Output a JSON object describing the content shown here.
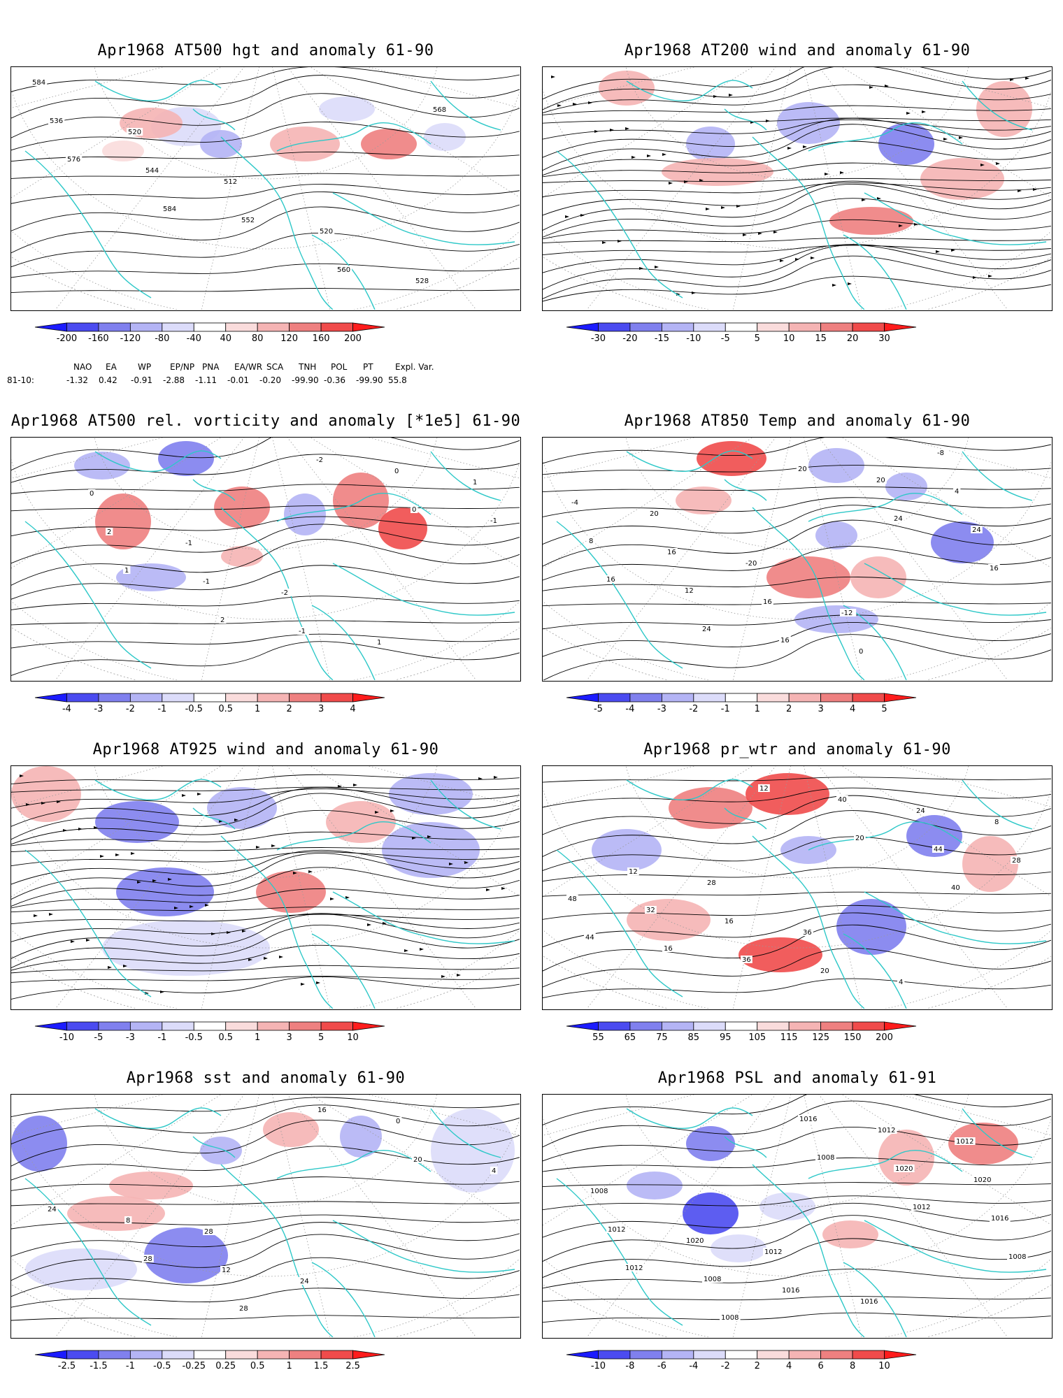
{
  "panels": [
    {
      "title": "Apr1968 AT500 hgt and anomaly 61-90",
      "labels": [
        "584",
        "520",
        "512",
        "520",
        "528",
        "536",
        "544",
        "552",
        "560",
        "568",
        "576",
        "584"
      ],
      "ticks": [
        "-200",
        "-160",
        "-120",
        "-80",
        "-40",
        "40",
        "80",
        "120",
        "160",
        "200"
      ]
    },
    {
      "title": "Apr1968 AT200 wind and anomaly 61-90",
      "labels": [],
      "ticks": [
        "-30",
        "-20",
        "-15",
        "-10",
        "-5",
        "5",
        "10",
        "15",
        "20",
        "30"
      ]
    },
    {
      "title": "Apr1968 AT500 rel. vorticity and anomaly [*1e5] 61-90",
      "labels": [
        "0",
        "-1",
        "-2",
        "1",
        "1",
        "2",
        "-1",
        "-1",
        "0",
        "-1",
        "1",
        "2",
        "-2",
        "0"
      ],
      "ticks": [
        "-4",
        "-3",
        "-2",
        "-1",
        "-0.5",
        "0.5",
        "1",
        "2",
        "3",
        "4"
      ]
    },
    {
      "title": "Apr1968 AT850 Temp and anomaly 61-90",
      "labels": [
        "20",
        "-20",
        "-12",
        "-8",
        "-4",
        "16",
        "16",
        "0",
        "4",
        "8",
        "12",
        "16",
        "20",
        "24",
        "16",
        "24",
        "20",
        "24",
        "16"
      ],
      "ticks": [
        "-5",
        "-4",
        "-3",
        "-2",
        "-1",
        "1",
        "2",
        "3",
        "4",
        "5"
      ]
    },
    {
      "title": "Apr1968 AT925 wind and anomaly 61-90",
      "labels": [],
      "ticks": [
        "-10",
        "-5",
        "-3",
        "-1",
        "-0.5",
        "0.5",
        "1",
        "3",
        "5",
        "10"
      ]
    },
    {
      "title": "Apr1968 pr_wtr and anomaly 61-90",
      "labels": [
        "28",
        "36",
        "4",
        "8",
        "12",
        "16",
        "20",
        "24",
        "28",
        "32",
        "36",
        "40",
        "44",
        "48",
        "16",
        "12",
        "20",
        "40",
        "44"
      ],
      "ticks": [
        "55",
        "65",
        "75",
        "85",
        "95",
        "105",
        "115",
        "125",
        "150",
        "200"
      ]
    },
    {
      "title": "Apr1968 sst and anomaly 61-90",
      "labels": [
        "28",
        "24",
        "0",
        "4",
        "8",
        "12",
        "16",
        "20",
        "24",
        "28",
        "28"
      ],
      "ticks": [
        "-2.5",
        "-1.5",
        "-1",
        "-0.5",
        "-0.25",
        "0.25",
        "0.5",
        "1",
        "1.5",
        "2.5"
      ]
    },
    {
      "title": "Apr1968 PSL and anomaly 61-91",
      "labels": [
        "1012",
        "1016",
        "1012",
        "1008",
        "1020",
        "1016",
        "1012",
        "1020",
        "1012",
        "1008",
        "1016",
        "1020",
        "1016",
        "1012",
        "1008",
        "1008",
        "1012",
        "1008"
      ],
      "ticks": [
        "-10",
        "-8",
        "-6",
        "-4",
        "-2",
        "2",
        "4",
        "6",
        "8",
        "10"
      ]
    }
  ],
  "index_table": {
    "headers": [
      "NAO",
      "EA",
      "WP",
      "EP/NP",
      "PNA",
      "EA/WR",
      "SCA",
      "TNH",
      "POL",
      "PT",
      "Expl. Var."
    ],
    "row_label": "81-10:",
    "values": [
      "-1.32",
      "0.42",
      "-0.91",
      "-2.88",
      "-1.11",
      "-0.01",
      "-0.20",
      "-99.90",
      "-0.36",
      "-99.90",
      "55.8"
    ]
  },
  "colors": {
    "scale": [
      "#1c1cff",
      "#4b4bf0",
      "#8080ee",
      "#b4b4f5",
      "#dcdcfa",
      "#ffffff",
      "#fadcdc",
      "#f5b4b4",
      "#ee8080",
      "#f04b4b",
      "#ff1c1c"
    ],
    "coast": "#2ec8c8",
    "contour": "#000000",
    "grid": "#9a9a9a"
  }
}
